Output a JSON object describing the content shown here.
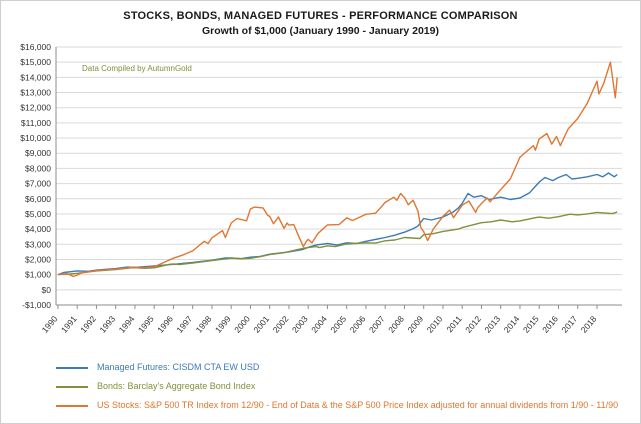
{
  "chart_data": {
    "type": "line",
    "title": "STOCKS, BONDS, MANAGED FUTURES - PERFORMANCE COMPARISON",
    "subtitle": "Growth of $1,000 (January 1990 - January 2019)",
    "annotation": "Data Compiled by AutumnGold",
    "ylim": [
      -1000,
      16000
    ],
    "xlim": [
      1989.9,
      2019.3
    ],
    "grid": "horizontal",
    "legend_position": "bottom-left",
    "y_ticks": [
      {
        "v": 16000,
        "label": "$16,000"
      },
      {
        "v": 15000,
        "label": "$15,000"
      },
      {
        "v": 14000,
        "label": "$14,000"
      },
      {
        "v": 13000,
        "label": "$13,000"
      },
      {
        "v": 12000,
        "label": "$12,000"
      },
      {
        "v": 11000,
        "label": "$11,000"
      },
      {
        "v": 10000,
        "label": "$10,000"
      },
      {
        "v": 9000,
        "label": "$9,000"
      },
      {
        "v": 8000,
        "label": "$8,000"
      },
      {
        "v": 7000,
        "label": "$7,000"
      },
      {
        "v": 6000,
        "label": "$6,000"
      },
      {
        "v": 5000,
        "label": "$5,000"
      },
      {
        "v": 4000,
        "label": "$4,000"
      },
      {
        "v": 3000,
        "label": "$3,000"
      },
      {
        "v": 2000,
        "label": "$2,000"
      },
      {
        "v": 1000,
        "label": "$1,000"
      },
      {
        "v": 0,
        "label": "$0"
      },
      {
        "v": -1000,
        "label": "-$1,000"
      }
    ],
    "x_ticks": [
      {
        "v": 1990,
        "label": "1990"
      },
      {
        "v": 1991,
        "label": "1991"
      },
      {
        "v": 1992,
        "label": "1992"
      },
      {
        "v": 1993,
        "label": "1993"
      },
      {
        "v": 1994,
        "label": "1994"
      },
      {
        "v": 1995,
        "label": "1995"
      },
      {
        "v": 1996,
        "label": "1996"
      },
      {
        "v": 1997,
        "label": "1997"
      },
      {
        "v": 1998,
        "label": "1998"
      },
      {
        "v": 1999,
        "label": "1999"
      },
      {
        "v": 2000,
        "label": "2000"
      },
      {
        "v": 2001,
        "label": "2001"
      },
      {
        "v": 2002,
        "label": "2002"
      },
      {
        "v": 2003,
        "label": "2003"
      },
      {
        "v": 2004,
        "label": "2004"
      },
      {
        "v": 2005,
        "label": "2005"
      },
      {
        "v": 2006,
        "label": "2006"
      },
      {
        "v": 2007,
        "label": "2007"
      },
      {
        "v": 2008,
        "label": "2008"
      },
      {
        "v": 2009,
        "label": "2009"
      },
      {
        "v": 2010,
        "label": "2010"
      },
      {
        "v": 2011,
        "label": "2011"
      },
      {
        "v": 2012,
        "label": "2012"
      },
      {
        "v": 2013,
        "label": "2013"
      },
      {
        "v": 2014,
        "label": "2014"
      },
      {
        "v": 2015,
        "label": "2015"
      },
      {
        "v": 2016,
        "label": "2016"
      },
      {
        "v": 2017,
        "label": "2017"
      },
      {
        "v": 2018,
        "label": "2018"
      }
    ],
    "series": [
      {
        "name": "Managed Futures: CISDM CTA EW USD",
        "color": "#3c7ab8",
        "points": [
          [
            1990.0,
            1000
          ],
          [
            1990.3,
            1140
          ],
          [
            1991.0,
            1250
          ],
          [
            1991.6,
            1220
          ],
          [
            1992.0,
            1300
          ],
          [
            1993.0,
            1400
          ],
          [
            1993.6,
            1500
          ],
          [
            1994.0,
            1470
          ],
          [
            1995.0,
            1570
          ],
          [
            1996.0,
            1680
          ],
          [
            1997.0,
            1800
          ],
          [
            1998.0,
            1950
          ],
          [
            1998.7,
            2100
          ],
          [
            1999.0,
            2100
          ],
          [
            1999.5,
            2050
          ],
          [
            2000.0,
            2150
          ],
          [
            2000.5,
            2200
          ],
          [
            2001.0,
            2350
          ],
          [
            2002.0,
            2500
          ],
          [
            2002.7,
            2650
          ],
          [
            2003.0,
            2800
          ],
          [
            2003.4,
            2950
          ],
          [
            2004.0,
            3050
          ],
          [
            2004.5,
            2950
          ],
          [
            2005.0,
            3100
          ],
          [
            2005.5,
            3050
          ],
          [
            2006.0,
            3200
          ],
          [
            2007.0,
            3450
          ],
          [
            2007.5,
            3600
          ],
          [
            2008.0,
            3800
          ],
          [
            2008.4,
            4000
          ],
          [
            2008.7,
            4200
          ],
          [
            2009.0,
            4700
          ],
          [
            2009.4,
            4600
          ],
          [
            2010.0,
            4800
          ],
          [
            2010.5,
            5100
          ],
          [
            2010.8,
            5400
          ],
          [
            2011.0,
            5700
          ],
          [
            2011.3,
            6350
          ],
          [
            2011.6,
            6100
          ],
          [
            2012.0,
            6200
          ],
          [
            2012.4,
            5950
          ],
          [
            2013.0,
            6100
          ],
          [
            2013.5,
            5950
          ],
          [
            2014.0,
            6050
          ],
          [
            2014.5,
            6400
          ],
          [
            2015.0,
            7100
          ],
          [
            2015.3,
            7400
          ],
          [
            2015.7,
            7200
          ],
          [
            2016.0,
            7400
          ],
          [
            2016.4,
            7600
          ],
          [
            2016.7,
            7300
          ],
          [
            2017.0,
            7350
          ],
          [
            2017.5,
            7450
          ],
          [
            2018.0,
            7600
          ],
          [
            2018.3,
            7450
          ],
          [
            2018.6,
            7700
          ],
          [
            2018.9,
            7450
          ],
          [
            2019.05,
            7600
          ]
        ]
      },
      {
        "name": "Bonds: Barclay's Aggregate Bond Index",
        "color": "#7f9139",
        "points": [
          [
            1990.0,
            1000
          ],
          [
            1990.5,
            1030
          ],
          [
            1991.0,
            1090
          ],
          [
            1992.0,
            1250
          ],
          [
            1993.0,
            1340
          ],
          [
            1993.8,
            1450
          ],
          [
            1994.0,
            1460
          ],
          [
            1994.5,
            1420
          ],
          [
            1995.0,
            1450
          ],
          [
            1995.8,
            1680
          ],
          [
            1996.0,
            1700
          ],
          [
            1996.3,
            1660
          ],
          [
            1997.0,
            1760
          ],
          [
            1998.0,
            1930
          ],
          [
            1998.8,
            2050
          ],
          [
            1999.0,
            2100
          ],
          [
            1999.6,
            2050
          ],
          [
            2000.0,
            2080
          ],
          [
            2000.5,
            2180
          ],
          [
            2001.0,
            2320
          ],
          [
            2001.8,
            2450
          ],
          [
            2002.0,
            2520
          ],
          [
            2002.8,
            2750
          ],
          [
            2003.0,
            2780
          ],
          [
            2003.4,
            2850
          ],
          [
            2003.6,
            2780
          ],
          [
            2004.0,
            2900
          ],
          [
            2004.4,
            2850
          ],
          [
            2005.0,
            3020
          ],
          [
            2006.0,
            3100
          ],
          [
            2006.5,
            3080
          ],
          [
            2007.0,
            3230
          ],
          [
            2007.5,
            3280
          ],
          [
            2008.0,
            3450
          ],
          [
            2008.8,
            3380
          ],
          [
            2009.0,
            3630
          ],
          [
            2009.5,
            3700
          ],
          [
            2010.0,
            3850
          ],
          [
            2010.8,
            4000
          ],
          [
            2011.0,
            4100
          ],
          [
            2012.0,
            4420
          ],
          [
            2012.5,
            4480
          ],
          [
            2013.0,
            4600
          ],
          [
            2013.6,
            4480
          ],
          [
            2014.0,
            4540
          ],
          [
            2014.8,
            4750
          ],
          [
            2015.0,
            4790
          ],
          [
            2015.5,
            4720
          ],
          [
            2016.0,
            4820
          ],
          [
            2016.6,
            4980
          ],
          [
            2017.0,
            4940
          ],
          [
            2017.5,
            5000
          ],
          [
            2018.0,
            5100
          ],
          [
            2018.8,
            5020
          ],
          [
            2019.05,
            5120
          ]
        ]
      },
      {
        "name": "US Stocks: S&P 500 TR Index from 12/90 - End of Data & the S&P 500 Price Index adjusted for annual dividends from 1/90 - 11/90",
        "color": "#e0762f",
        "points": [
          [
            1990.0,
            1000
          ],
          [
            1990.5,
            1060
          ],
          [
            1990.8,
            880
          ],
          [
            1991.0,
            969
          ],
          [
            1991.2,
            1100
          ],
          [
            1992.0,
            1264
          ],
          [
            1993.0,
            1360
          ],
          [
            1994.0,
            1497
          ],
          [
            1994.3,
            1430
          ],
          [
            1995.0,
            1517
          ],
          [
            1995.5,
            1800
          ],
          [
            1996.0,
            2087
          ],
          [
            1996.5,
            2300
          ],
          [
            1997.0,
            2567
          ],
          [
            1997.6,
            3200
          ],
          [
            1997.8,
            3050
          ],
          [
            1998.0,
            3424
          ],
          [
            1998.55,
            3900
          ],
          [
            1998.7,
            3450
          ],
          [
            1999.0,
            4403
          ],
          [
            1999.3,
            4700
          ],
          [
            1999.8,
            4550
          ],
          [
            2000.0,
            5328
          ],
          [
            2000.2,
            5450
          ],
          [
            2000.65,
            5400
          ],
          [
            2000.9,
            4900
          ],
          [
            2001.0,
            4843
          ],
          [
            2001.2,
            4350
          ],
          [
            2001.45,
            4800
          ],
          [
            2001.75,
            4050
          ],
          [
            2001.9,
            4400
          ],
          [
            2002.0,
            4267
          ],
          [
            2002.25,
            4300
          ],
          [
            2002.55,
            3400
          ],
          [
            2002.75,
            2850
          ],
          [
            2002.9,
            3200
          ],
          [
            2003.0,
            3324
          ],
          [
            2003.2,
            3100
          ],
          [
            2003.5,
            3700
          ],
          [
            2004.0,
            4278
          ],
          [
            2004.6,
            4300
          ],
          [
            2005.0,
            4744
          ],
          [
            2005.3,
            4570
          ],
          [
            2006.0,
            4976
          ],
          [
            2006.5,
            5050
          ],
          [
            2007.0,
            5762
          ],
          [
            2007.45,
            6100
          ],
          [
            2007.6,
            5900
          ],
          [
            2007.8,
            6350
          ],
          [
            2008.0,
            6079
          ],
          [
            2008.2,
            5600
          ],
          [
            2008.45,
            5900
          ],
          [
            2008.7,
            5200
          ],
          [
            2008.85,
            4100
          ],
          [
            2009.0,
            3830
          ],
          [
            2009.2,
            3250
          ],
          [
            2009.5,
            4000
          ],
          [
            2010.0,
            4845
          ],
          [
            2010.35,
            5250
          ],
          [
            2010.55,
            4750
          ],
          [
            2011.0,
            5577
          ],
          [
            2011.35,
            5850
          ],
          [
            2011.7,
            5100
          ],
          [
            2011.8,
            5400
          ],
          [
            2012.0,
            5694
          ],
          [
            2012.3,
            6050
          ],
          [
            2012.45,
            5800
          ],
          [
            2013.0,
            6605
          ],
          [
            2013.5,
            7300
          ],
          [
            2014.0,
            8745
          ],
          [
            2014.7,
            9500
          ],
          [
            2014.8,
            9200
          ],
          [
            2015.0,
            9943
          ],
          [
            2015.4,
            10300
          ],
          [
            2015.65,
            9600
          ],
          [
            2015.9,
            10100
          ],
          [
            2016.1,
            9500
          ],
          [
            2016.5,
            10600
          ],
          [
            2017.0,
            11292
          ],
          [
            2017.5,
            12300
          ],
          [
            2018.0,
            13754
          ],
          [
            2018.1,
            12900
          ],
          [
            2018.35,
            13600
          ],
          [
            2018.7,
            15000
          ],
          [
            2018.95,
            12650
          ],
          [
            2019.05,
            14000
          ]
        ]
      }
    ]
  }
}
